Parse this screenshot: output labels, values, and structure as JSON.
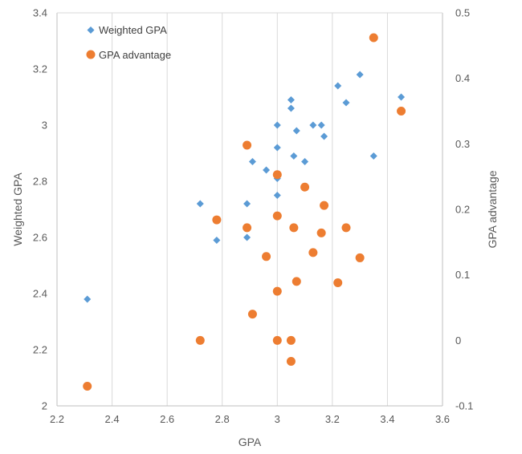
{
  "chart_data": {
    "type": "scatter",
    "xlabel": "GPA",
    "ylabel": "Weighted GPA",
    "y2label": "GPA advantage",
    "xlim": [
      2.2,
      3.6
    ],
    "ylim": [
      2,
      3.4
    ],
    "y2lim": [
      -0.1,
      0.5
    ],
    "x_ticks": [
      "2.2",
      "2.4",
      "2.6",
      "2.8",
      "3",
      "3.2",
      "3.4",
      "3.6"
    ],
    "y_ticks": [
      "2",
      "2.2",
      "2.4",
      "2.6",
      "2.8",
      "3",
      "3.2",
      "3.4"
    ],
    "y2_ticks": [
      "-0.1",
      "0",
      "0.1",
      "0.2",
      "0.3",
      "0.4",
      "0.5"
    ],
    "grid": "vertical",
    "legend_position": "top-left",
    "series": [
      {
        "name": "Weighted GPA",
        "axis": "left",
        "marker": "diamond",
        "color": "#5B9BD5",
        "points": [
          [
            2.31,
            2.38
          ],
          [
            2.72,
            2.72
          ],
          [
            2.78,
            2.59
          ],
          [
            2.89,
            2.72
          ],
          [
            2.89,
            2.6
          ],
          [
            2.91,
            2.87
          ],
          [
            2.96,
            2.84
          ],
          [
            3.0,
            3.0
          ],
          [
            3.0,
            2.92
          ],
          [
            3.0,
            2.81
          ],
          [
            3.0,
            2.75
          ],
          [
            3.05,
            3.09
          ],
          [
            3.05,
            3.06
          ],
          [
            3.06,
            2.89
          ],
          [
            3.07,
            2.98
          ],
          [
            3.1,
            2.87
          ],
          [
            3.13,
            3.0
          ],
          [
            3.16,
            3.0
          ],
          [
            3.17,
            2.96
          ],
          [
            3.22,
            3.14
          ],
          [
            3.25,
            3.08
          ],
          [
            3.3,
            3.18
          ],
          [
            3.35,
            2.89
          ],
          [
            3.45,
            3.1
          ]
        ]
      },
      {
        "name": "GPA advantage",
        "axis": "right",
        "marker": "circle",
        "color": "#ED7D31",
        "points": [
          [
            2.31,
            -0.07
          ],
          [
            2.72,
            0.0
          ],
          [
            2.78,
            0.184
          ],
          [
            2.89,
            0.298
          ],
          [
            2.89,
            0.172
          ],
          [
            2.91,
            0.04
          ],
          [
            2.96,
            0.128
          ],
          [
            3.0,
            0.253
          ],
          [
            3.0,
            0.19
          ],
          [
            3.0,
            0.075
          ],
          [
            3.0,
            0.0
          ],
          [
            3.05,
            0.0
          ],
          [
            3.05,
            -0.032
          ],
          [
            3.06,
            0.172
          ],
          [
            3.07,
            0.09
          ],
          [
            3.1,
            0.234
          ],
          [
            3.13,
            0.134
          ],
          [
            3.16,
            0.164
          ],
          [
            3.17,
            0.206
          ],
          [
            3.22,
            0.088
          ],
          [
            3.25,
            0.172
          ],
          [
            3.3,
            0.126
          ],
          [
            3.35,
            0.462
          ],
          [
            3.45,
            0.35
          ]
        ]
      }
    ]
  }
}
